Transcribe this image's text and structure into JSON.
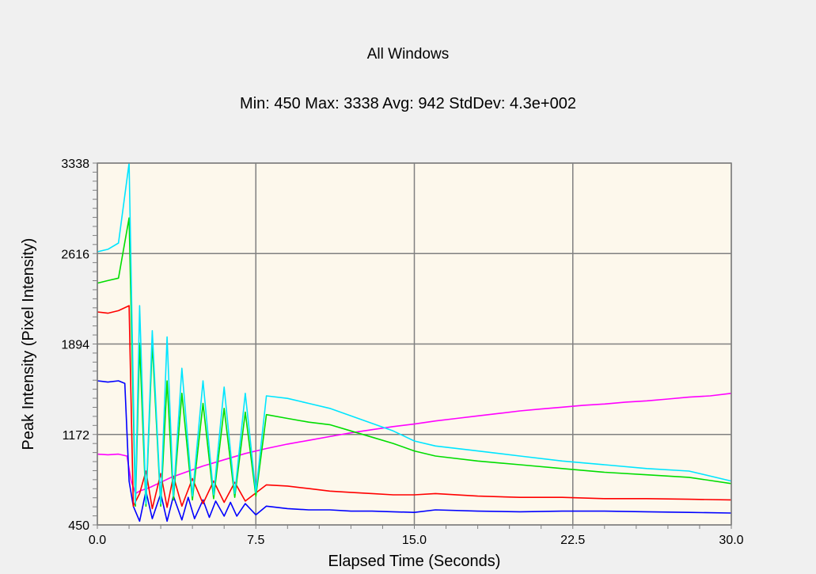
{
  "chart_data": {
    "type": "line",
    "title": "All Windows",
    "subtitle": "Min: 450  Max: 3338  Avg: 942  StdDev: 4.3e+002",
    "xlabel": "Elapsed Time (Seconds)",
    "ylabel": "Peak Intensity (Pixel Intensity)",
    "xlim": [
      0,
      30
    ],
    "ylim": [
      450,
      3338
    ],
    "xticks": [
      "0.0",
      "7.5",
      "15.0",
      "22.5",
      "30.0"
    ],
    "yticks": [
      "450",
      "1172",
      "1894",
      "2616",
      "3338"
    ],
    "grid": true,
    "legend": "none",
    "background": "#fdf8ec",
    "series": [
      {
        "color": "#ff00ff",
        "x": [
          0,
          0.5,
          1.0,
          1.4,
          1.6,
          1.8,
          2.0,
          2.5,
          3.0,
          3.5,
          4.0,
          5.0,
          6.0,
          7.0,
          8.0,
          9.0,
          10.0,
          11.0,
          12.0,
          13.0,
          14.0,
          15.0,
          16.0,
          17.0,
          18.0,
          19.0,
          20.0,
          21.0,
          22.0,
          23.0,
          24.0,
          25.0,
          26.0,
          27.0,
          28.0,
          29.0,
          30.0
        ],
        "y": [
          1015,
          1010,
          1015,
          1000,
          800,
          700,
          720,
          750,
          790,
          830,
          860,
          920,
          970,
          1020,
          1060,
          1095,
          1125,
          1155,
          1185,
          1210,
          1235,
          1255,
          1280,
          1300,
          1320,
          1340,
          1360,
          1375,
          1390,
          1405,
          1415,
          1430,
          1440,
          1455,
          1470,
          1480,
          1500
        ]
      },
      {
        "color": "#0000ff",
        "x": [
          0,
          0.5,
          1.0,
          1.3,
          1.5,
          1.7,
          2.0,
          2.3,
          2.6,
          3.0,
          3.3,
          3.6,
          4.0,
          4.3,
          4.6,
          5.0,
          5.3,
          5.6,
          6.0,
          6.3,
          6.6,
          7.0,
          7.5,
          8.0,
          9.0,
          10.0,
          11.0,
          12.0,
          13.0,
          14.0,
          15.0,
          16.0,
          18.0,
          20.0,
          22.0,
          24.0,
          26.0,
          28.0,
          30.0
        ],
        "y": [
          1600,
          1590,
          1600,
          1580,
          800,
          600,
          480,
          720,
          500,
          700,
          480,
          680,
          490,
          670,
          500,
          650,
          510,
          640,
          520,
          630,
          520,
          620,
          530,
          600,
          580,
          570,
          570,
          560,
          560,
          555,
          550,
          570,
          560,
          555,
          560,
          560,
          555,
          550,
          545
        ]
      },
      {
        "color": "#ff0000",
        "x": [
          0,
          0.5,
          1.0,
          1.5,
          1.7,
          2.0,
          2.3,
          2.6,
          3.0,
          3.3,
          3.6,
          4.0,
          4.5,
          5.0,
          5.5,
          6.0,
          6.5,
          7.0,
          8.0,
          9.0,
          10.0,
          11.0,
          12.0,
          13.0,
          14.0,
          15.0,
          16.0,
          18.0,
          20.0,
          22.0,
          24.0,
          26.0,
          28.0,
          30.0
        ],
        "y": [
          2150,
          2140,
          2160,
          2200,
          600,
          700,
          880,
          580,
          860,
          590,
          840,
          600,
          820,
          620,
          800,
          630,
          790,
          640,
          770,
          760,
          740,
          720,
          710,
          700,
          690,
          690,
          700,
          680,
          670,
          670,
          660,
          660,
          655,
          650
        ]
      },
      {
        "color": "#00dd00",
        "x": [
          0,
          0.5,
          1.0,
          1.5,
          1.8,
          2.0,
          2.3,
          2.6,
          3.0,
          3.3,
          3.6,
          4.0,
          4.5,
          5.0,
          5.5,
          6.0,
          6.5,
          7.0,
          7.5,
          8.0,
          9.0,
          10.0,
          11.0,
          12.0,
          13.0,
          14.0,
          15.0,
          16.0,
          18.0,
          20.0,
          22.0,
          24.0,
          26.0,
          28.0,
          30.0
        ],
        "y": [
          2380,
          2400,
          2420,
          2900,
          600,
          1900,
          600,
          1900,
          600,
          1600,
          650,
          1500,
          650,
          1420,
          660,
          1380,
          670,
          1350,
          680,
          1330,
          1300,
          1270,
          1250,
          1200,
          1150,
          1100,
          1040,
          1000,
          960,
          930,
          900,
          870,
          850,
          830,
          780
        ]
      },
      {
        "color": "#00e5ff",
        "x": [
          0,
          0.5,
          1.0,
          1.5,
          1.8,
          2.0,
          2.3,
          2.6,
          3.0,
          3.3,
          3.6,
          4.0,
          4.5,
          5.0,
          5.5,
          6.0,
          6.5,
          7.0,
          7.5,
          8.0,
          9.0,
          10.0,
          11.0,
          12.0,
          13.0,
          14.0,
          15.0,
          16.0,
          18.0,
          20.0,
          22.0,
          24.0,
          26.0,
          28.0,
          30.0
        ],
        "y": [
          2630,
          2650,
          2700,
          3338,
          620,
          2200,
          620,
          2000,
          620,
          1950,
          680,
          1700,
          680,
          1600,
          690,
          1550,
          700,
          1500,
          710,
          1480,
          1460,
          1420,
          1380,
          1320,
          1260,
          1200,
          1120,
          1080,
          1040,
          1000,
          960,
          930,
          900,
          880,
          800
        ]
      }
    ]
  }
}
